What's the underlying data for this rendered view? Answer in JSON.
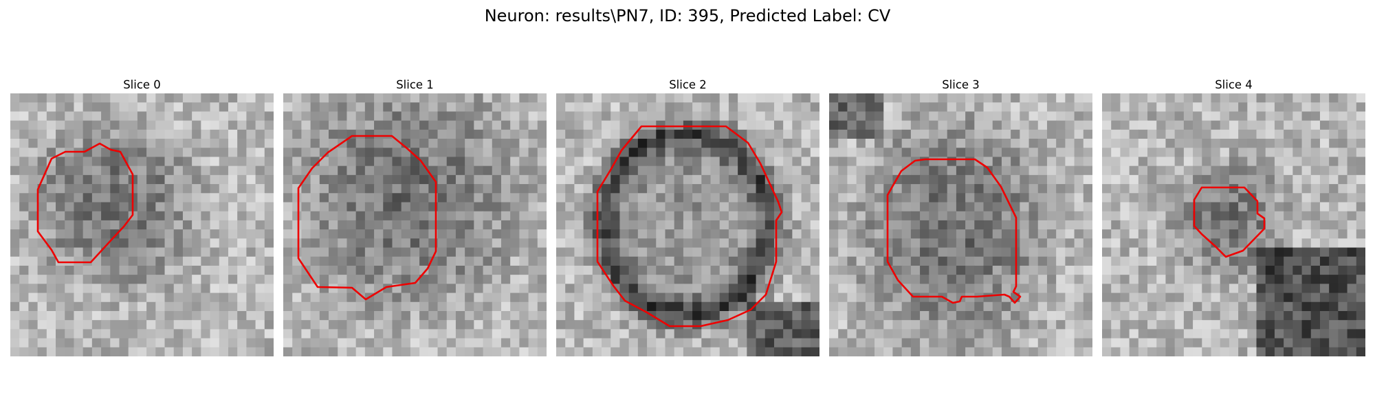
{
  "figure": {
    "title": "Neuron: results\\PN7, ID: 395, Predicted Label: CV"
  },
  "colors": {
    "contour": "#ee0000",
    "background": "#ffffff"
  },
  "panels": [
    {
      "title": "Slice 0",
      "image": "grayscale-microscopy-patch",
      "dark_blob": "center-upper"
    },
    {
      "title": "Slice 1",
      "image": "grayscale-microscopy-patch",
      "dark_blob": "center"
    },
    {
      "title": "Slice 2",
      "image": "grayscale-microscopy-patch",
      "dark_blob": "ring"
    },
    {
      "title": "Slice 3",
      "image": "grayscale-microscopy-patch",
      "dark_blob": "center"
    },
    {
      "title": "Slice 4",
      "image": "grayscale-microscopy-patch",
      "dark_blob": "small-center"
    }
  ]
}
